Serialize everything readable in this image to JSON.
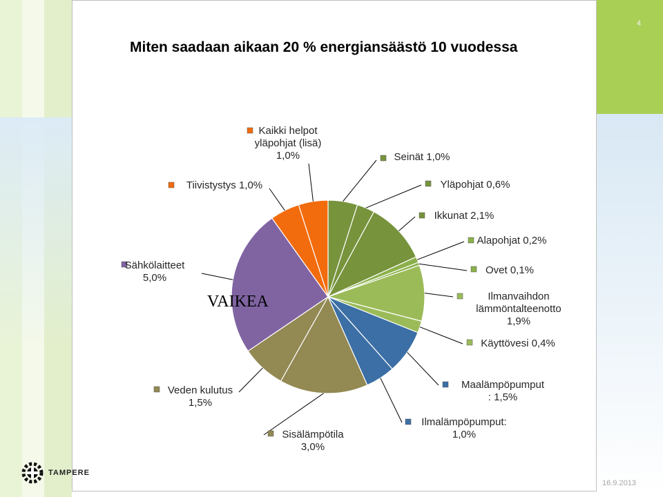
{
  "slide_number": "4",
  "date": "16.9.2013",
  "logo_text": "TAMPERE",
  "chart_data": {
    "type": "pie",
    "title": "Miten saadaan aikaan 20 % energiansäästö 10 vuodessa",
    "annotation": "VAIKEA",
    "series": [
      {
        "label": [
          "Seinät 1,0%"
        ],
        "value": 1.0,
        "color": "#77933c",
        "legend_color": "#77933c"
      },
      {
        "label": [
          "Yläpohjat 0,6%"
        ],
        "value": 0.6,
        "color": "#77933c",
        "legend_color": "#77933c"
      },
      {
        "label": [
          "Ikkunat 2,1%"
        ],
        "value": 2.1,
        "color": "#77933c",
        "legend_color": "#77933c"
      },
      {
        "label": [
          "Alapohjat 0,2%"
        ],
        "value": 0.2,
        "color": "#8bb04a",
        "legend_color": "#8bb04a"
      },
      {
        "label": [
          "Ovet 0,1%"
        ],
        "value": 0.1,
        "color": "#8bb04a",
        "legend_color": "#8bb04a"
      },
      {
        "label": [
          "Ilmanvaihdon",
          "lämmöntalteenotto",
          "1,9%"
        ],
        "value": 1.9,
        "color": "#9bbb59",
        "legend_color": "#9bbb59"
      },
      {
        "label": [
          "Käyttövesi 0,4%"
        ],
        "value": 0.4,
        "color": "#9bbb59",
        "legend_color": "#9bbb59"
      },
      {
        "label": [
          "Maalämpöpumput",
          ": 1,5%"
        ],
        "value": 1.5,
        "color": "#3c6fa5",
        "legend_color": "#3c6fa5"
      },
      {
        "label": [
          "Ilmalämpöpumput:",
          "1,0%"
        ],
        "value": 1.0,
        "color": "#3c6fa5",
        "legend_color": "#3c6fa5"
      },
      {
        "label": [
          "Sisälämpötila",
          "3,0%"
        ],
        "value": 3.0,
        "color": "#938953",
        "legend_color": "#938953"
      },
      {
        "label": [
          "Veden kulutus",
          "1,5%"
        ],
        "value": 1.5,
        "color": "#938953",
        "legend_color": "#938953"
      },
      {
        "label": [
          "Sähkölaitteet",
          "5,0%"
        ],
        "value": 5.0,
        "color": "#8064a2",
        "legend_color": "#8064a2"
      },
      {
        "label": [
          "Tiivistystys 1,0%"
        ],
        "value": 1.0,
        "color": "#f26c0d",
        "legend_color": "#f26c0d"
      },
      {
        "label": [
          "Kaikki helpot",
          "yläpohjat (lisä)",
          "1,0%"
        ],
        "value": 1.0,
        "color": "#f26c0d",
        "legend_color": "#f26c0d"
      }
    ]
  }
}
